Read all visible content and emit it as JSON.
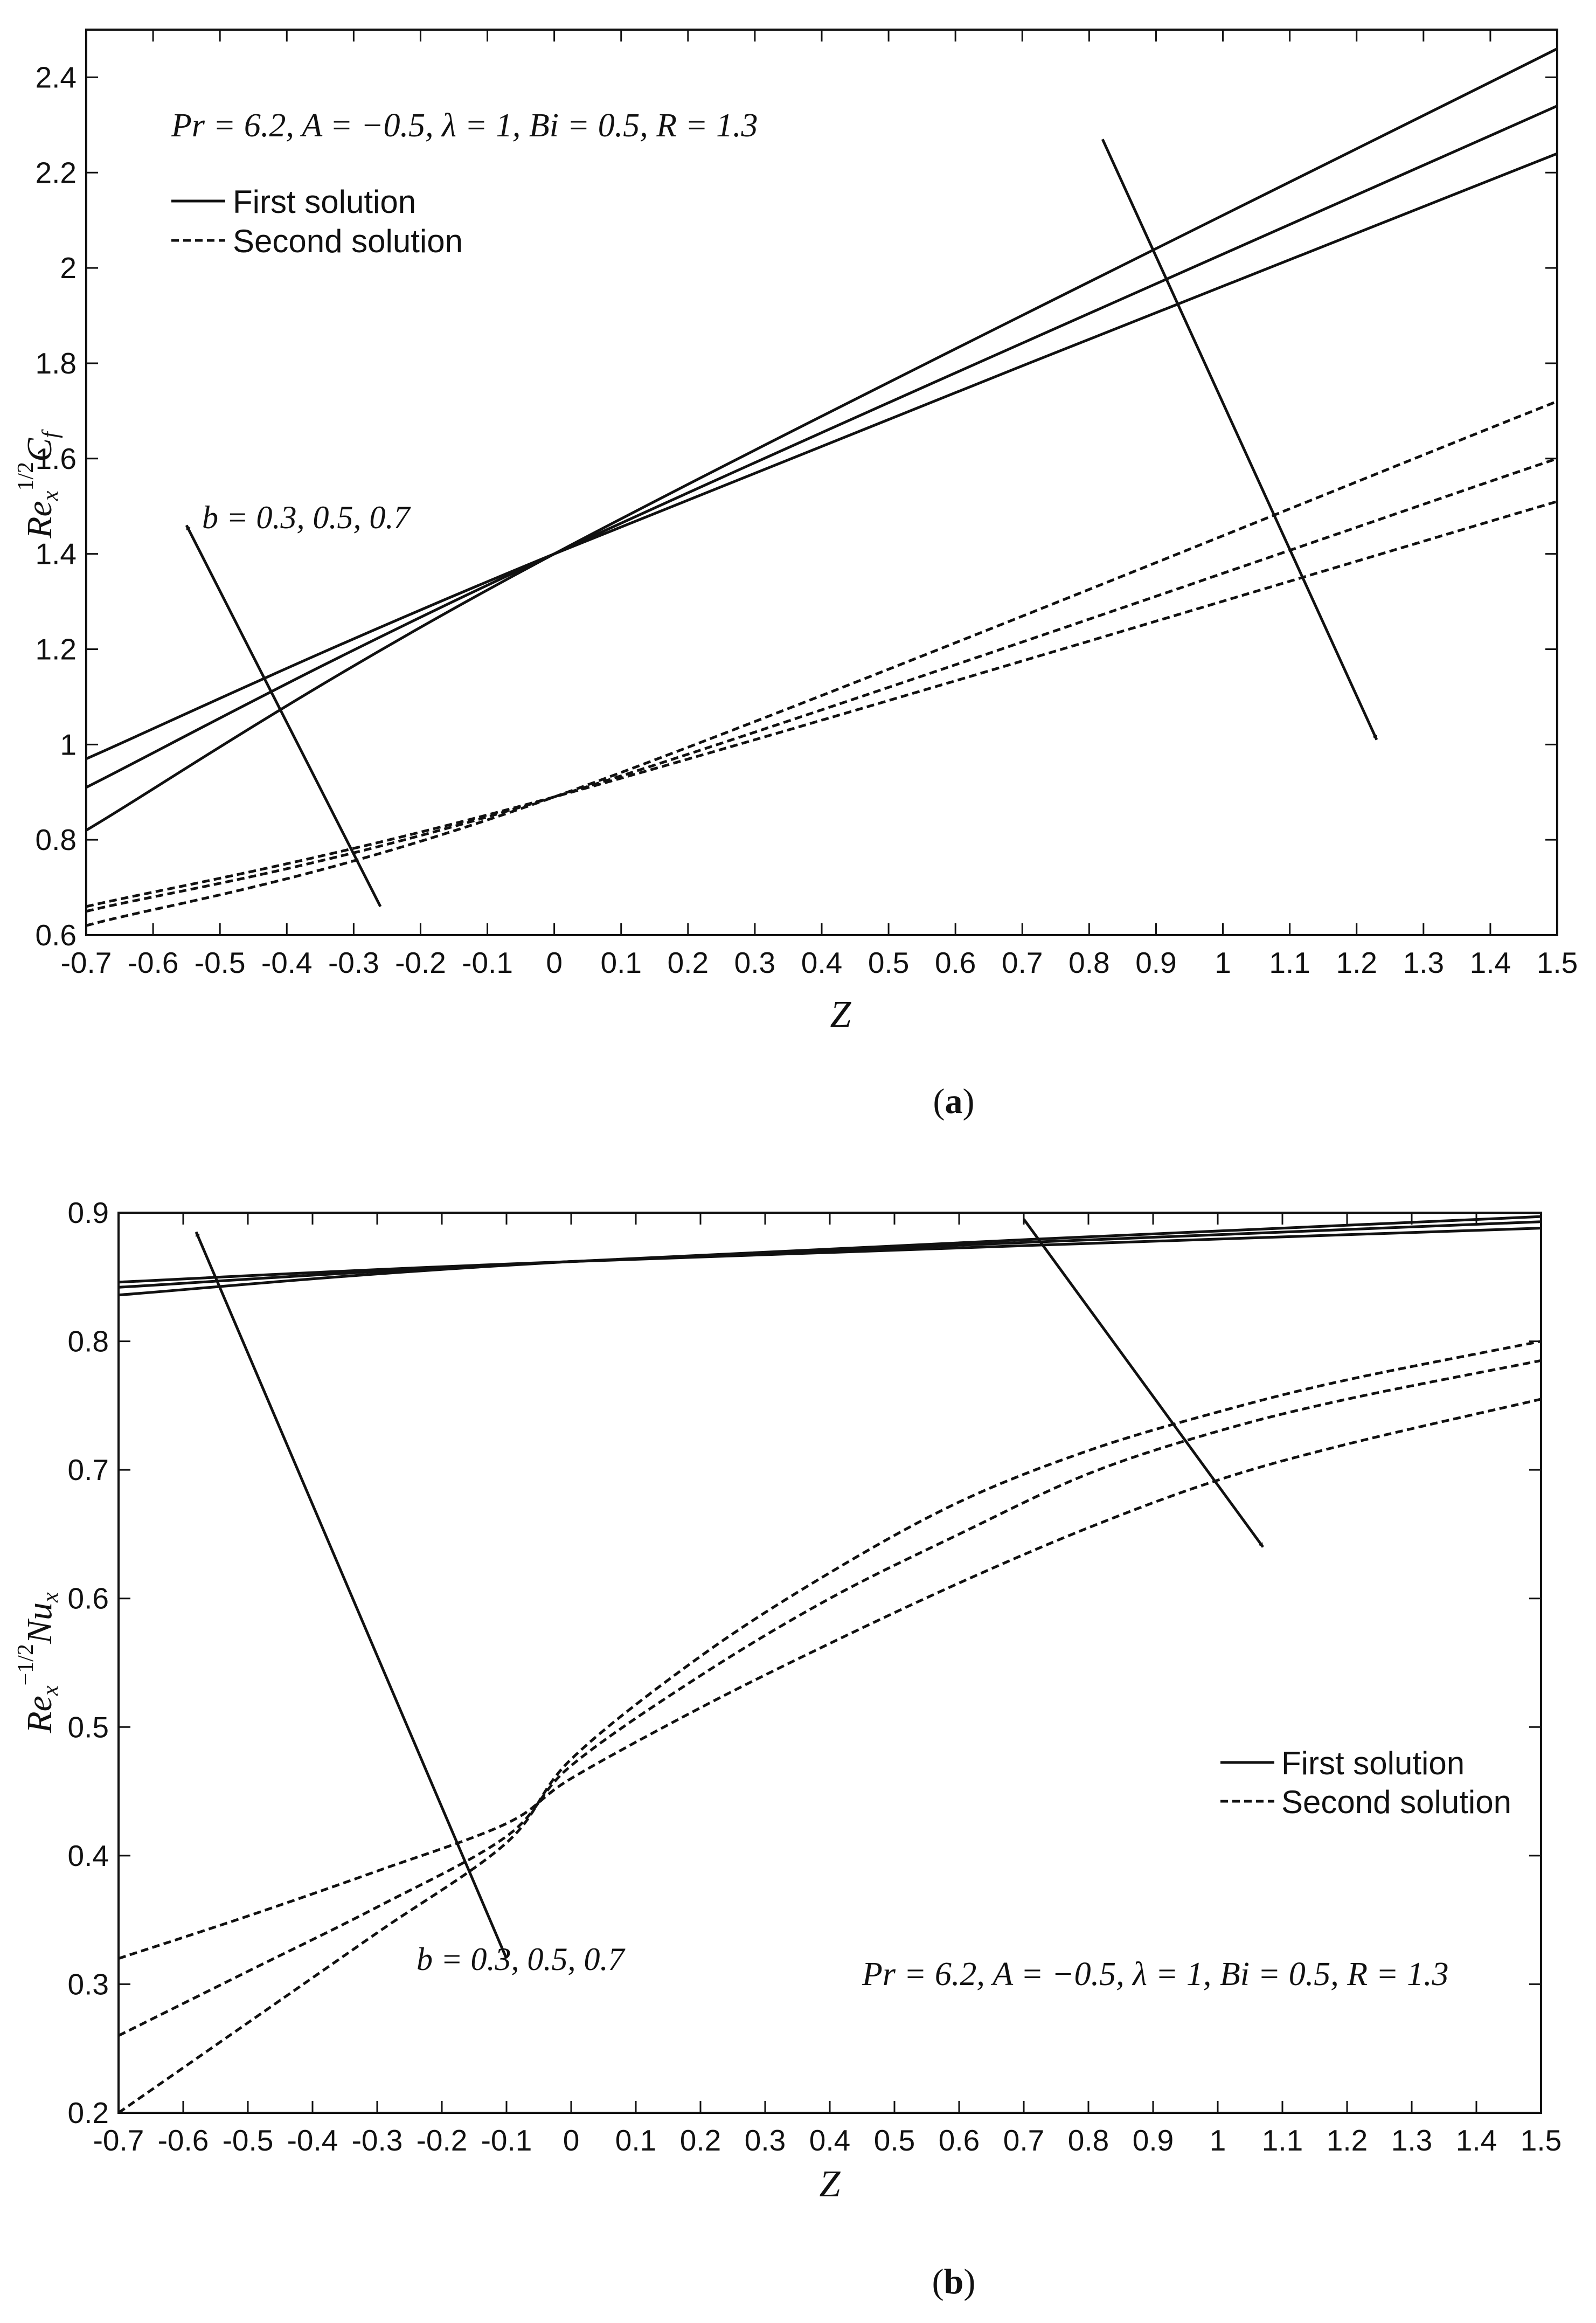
{
  "chart_data": [
    {
      "type": "line",
      "panel_label": "a",
      "xlabel": "Z",
      "ylabel": {
        "base": "Re",
        "sub": "x",
        "sup": "1/2",
        "tail": "C",
        "tail_sub": "f"
      },
      "xlim": [
        -0.7,
        1.5
      ],
      "ylim": [
        0.6,
        2.5
      ],
      "xticks": [
        "-0.7",
        "-0.6",
        "-0.5",
        "-0.4",
        "-0.3",
        "-0.2",
        "-0.1",
        "0",
        "0.1",
        "0.2",
        "0.3",
        "0.4",
        "0.5",
        "0.6",
        "0.7",
        "0.8",
        "0.9",
        "1",
        "1.1",
        "1.2",
        "1.3",
        "1.4",
        "1.5"
      ],
      "yticks": [
        "0.6",
        "0.8",
        "1",
        "1.2",
        "1.4",
        "1.6",
        "1.8",
        "2",
        "2.2",
        "2.4"
      ],
      "grid": false,
      "legend_position": "top-left",
      "legend": [
        {
          "label": "First solution",
          "style": "solid"
        },
        {
          "label": "Second solution",
          "style": "dashed"
        }
      ],
      "parameter_text": "Pr = 6.2, A = −0.5, λ = 1, Bi = 0.5, R = 1.3",
      "annotation": "b = 0.3, 0.5, 0.7",
      "series": [
        {
          "style": "solid",
          "x": [
            -0.7,
            0,
            1.5
          ],
          "y": [
            0.97,
            1.4,
            2.24
          ]
        },
        {
          "style": "solid",
          "x": [
            -0.7,
            0,
            1.5
          ],
          "y": [
            0.91,
            1.4,
            2.34
          ]
        },
        {
          "style": "solid",
          "x": [
            -0.7,
            0,
            1.5
          ],
          "y": [
            0.82,
            1.4,
            2.46
          ]
        },
        {
          "style": "dashed",
          "x": [
            -0.7,
            0,
            1.5
          ],
          "y": [
            0.66,
            0.89,
            1.51
          ]
        },
        {
          "style": "dashed",
          "x": [
            -0.7,
            0,
            1.5
          ],
          "y": [
            0.65,
            0.89,
            1.6
          ]
        },
        {
          "style": "dashed",
          "x": [
            -0.7,
            0,
            1.5
          ],
          "y": [
            0.62,
            0.89,
            1.72
          ]
        }
      ],
      "arrows": [
        {
          "from": [
            -0.26,
            0.66
          ],
          "to": [
            -0.55,
            1.46
          ]
        },
        {
          "from": [
            0.82,
            2.27
          ],
          "to": [
            1.23,
            1.01
          ]
        }
      ]
    },
    {
      "type": "line",
      "panel_label": "b",
      "xlabel": "Z",
      "ylabel": {
        "base": "Re",
        "sub": "x",
        "sup": "−1/2",
        "tail": "Nu",
        "tail_sub": "x"
      },
      "xlim": [
        -0.7,
        1.5
      ],
      "ylim": [
        0.2,
        0.9
      ],
      "xticks": [
        "-0.7",
        "-0.6",
        "-0.5",
        "-0.4",
        "-0.3",
        "-0.2",
        "-0.1",
        "0",
        "0.1",
        "0.2",
        "0.3",
        "0.4",
        "0.5",
        "0.6",
        "0.7",
        "0.8",
        "0.9",
        "1",
        "1.1",
        "1.2",
        "1.3",
        "1.4",
        "1.5"
      ],
      "yticks": [
        "0.2",
        "0.3",
        "0.4",
        "0.5",
        "0.6",
        "0.7",
        "0.8",
        "0.9"
      ],
      "grid": false,
      "legend_position": "center-right",
      "legend": [
        {
          "label": "First solution",
          "style": "solid"
        },
        {
          "label": "Second solution",
          "style": "dashed"
        }
      ],
      "parameter_text": "Pr = 6.2, A = −0.5, λ = 1, Bi = 0.5, R = 1.3",
      "annotation": "b = 0.3, 0.5, 0.7",
      "series": [
        {
          "style": "solid",
          "x": [
            -0.7,
            0,
            1.5
          ],
          "y": [
            0.846,
            0.862,
            0.888
          ]
        },
        {
          "style": "solid",
          "x": [
            -0.7,
            0,
            1.5
          ],
          "y": [
            0.842,
            0.862,
            0.893
          ]
        },
        {
          "style": "solid",
          "x": [
            -0.7,
            0,
            1.5
          ],
          "y": [
            0.836,
            0.862,
            0.897
          ]
        },
        {
          "style": "dashed",
          "x": [
            -0.7,
            -0.5,
            -0.3,
            -0.1,
            0,
            0.2,
            0.4,
            0.6,
            0.8,
            1.0,
            1.2,
            1.5
          ],
          "y": [
            0.32,
            0.353,
            0.388,
            0.425,
            0.46,
            0.515,
            0.565,
            0.612,
            0.655,
            0.692,
            0.72,
            0.755
          ]
        },
        {
          "style": "dashed",
          "x": [
            -0.7,
            -0.5,
            -0.3,
            -0.1,
            0,
            0.2,
            0.4,
            0.6,
            0.8,
            1.0,
            1.2,
            1.5
          ],
          "y": [
            0.26,
            0.31,
            0.36,
            0.415,
            0.47,
            0.54,
            0.6,
            0.65,
            0.697,
            0.73,
            0.755,
            0.785
          ]
        },
        {
          "style": "dashed",
          "x": [
            -0.7,
            -0.5,
            -0.3,
            -0.1,
            0,
            0.2,
            0.4,
            0.6,
            0.8,
            1.0,
            1.2,
            1.5
          ],
          "y": [
            0.2,
            0.27,
            0.34,
            0.41,
            0.475,
            0.555,
            0.62,
            0.675,
            0.715,
            0.745,
            0.77,
            0.8
          ]
        }
      ],
      "arrows": [
        {
          "from": [
            -0.1,
            0.32
          ],
          "to": [
            -0.58,
            0.885
          ]
        },
        {
          "from": [
            0.7,
            0.895
          ],
          "to": [
            1.07,
            0.64
          ]
        }
      ]
    }
  ]
}
